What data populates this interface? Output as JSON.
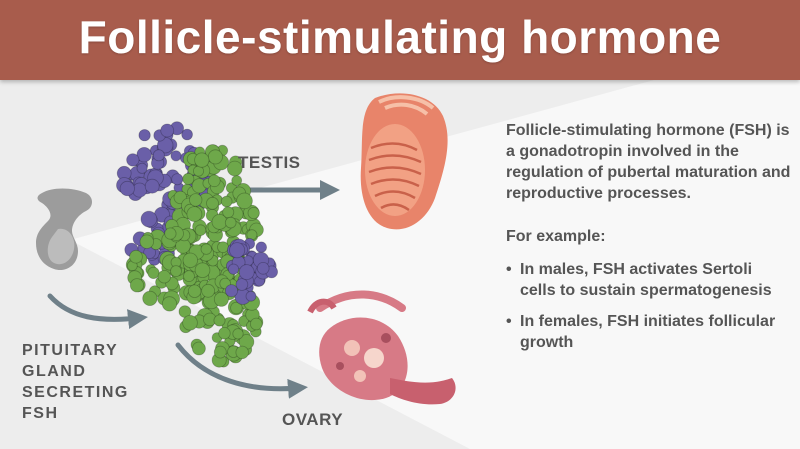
{
  "title": "Follicle-stimulating hormone",
  "labels": {
    "testis": "TESTIS",
    "ovary": "OVARY",
    "pituitary": [
      "PITUITARY",
      "GLAND",
      "SECRETING",
      "FSH"
    ]
  },
  "description": "Follicle-stimulating hormone (FSH) is a gonadotropin involved in the regulation of pubertal maturation and reproductive processes.",
  "example_heading": "For example:",
  "bullets": [
    "In males, FSH activates Sertoli cells to sustain spermatogenesis",
    "In females, FSH initiates follicular growth"
  ],
  "colors": {
    "banner": "#a85c4c",
    "text": "#555555",
    "arrow": "#6f8089",
    "protein_green": "#6ea84a",
    "protein_purple": "#6a5fa8",
    "testis": "#e8846a",
    "ovary": "#d77a86",
    "gland": "#9c9c9c"
  },
  "icons": [
    "pituitary-gland-icon",
    "fsh-protein-structure",
    "testis-illustration",
    "ovary-illustration"
  ]
}
